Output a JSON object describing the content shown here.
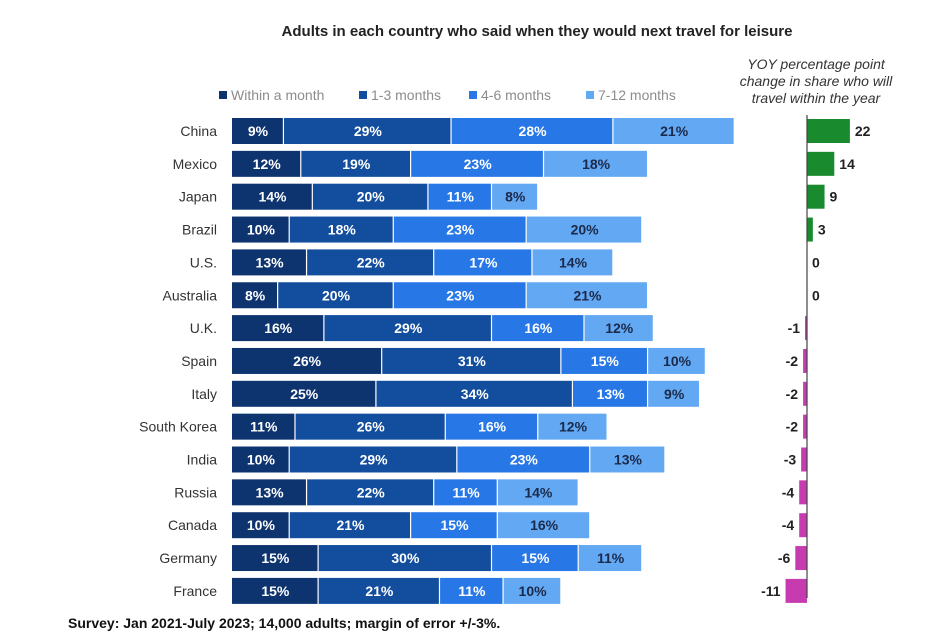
{
  "chart_data": {
    "type": "bar",
    "orientation": "horizontal",
    "stacked": true,
    "title": "Adults in each country who said when they would next travel for leisure",
    "categories": [
      "China",
      "Mexico",
      "Japan",
      "Brazil",
      "U.S.",
      "Australia",
      "U.K.",
      "Spain",
      "Italy",
      "South Korea",
      "India",
      "Russia",
      "Canada",
      "Germany",
      "France"
    ],
    "series": [
      {
        "name": "Within a month",
        "color": "#0e3470",
        "label_color": "#ffffff",
        "values": [
          9,
          12,
          14,
          10,
          13,
          8,
          16,
          26,
          25,
          11,
          10,
          13,
          10,
          15,
          15
        ]
      },
      {
        "name": "1-3 months",
        "color": "#124d9e",
        "label_color": "#ffffff",
        "values": [
          29,
          19,
          20,
          18,
          22,
          20,
          29,
          31,
          34,
          26,
          29,
          22,
          21,
          30,
          21
        ]
      },
      {
        "name": "4-6 months",
        "color": "#2777e6",
        "label_color": "#ffffff",
        "values": [
          28,
          23,
          11,
          23,
          17,
          23,
          16,
          15,
          13,
          16,
          23,
          11,
          15,
          15,
          11
        ]
      },
      {
        "name": "7-12 months",
        "color": "#63a8f3",
        "label_color": "#1b2a4a",
        "values": [
          21,
          18,
          8,
          20,
          14,
          21,
          12,
          10,
          9,
          12,
          13,
          14,
          16,
          11,
          10
        ]
      }
    ],
    "value_suffix": "%",
    "yoy": {
      "title_lines": [
        "YOY percentage point",
        "change in share who will",
        "travel within the year"
      ],
      "values": [
        22,
        14,
        9,
        3,
        0,
        0,
        -1,
        -2,
        -2,
        -2,
        -3,
        -4,
        -4,
        -6,
        -11
      ],
      "positive_color": "#1a8a2e",
      "negative_color": "#c63bb0"
    },
    "footnote": "Survey: Jan 2021-July 2023; 14,000 adults; margin of error +/-3%."
  }
}
